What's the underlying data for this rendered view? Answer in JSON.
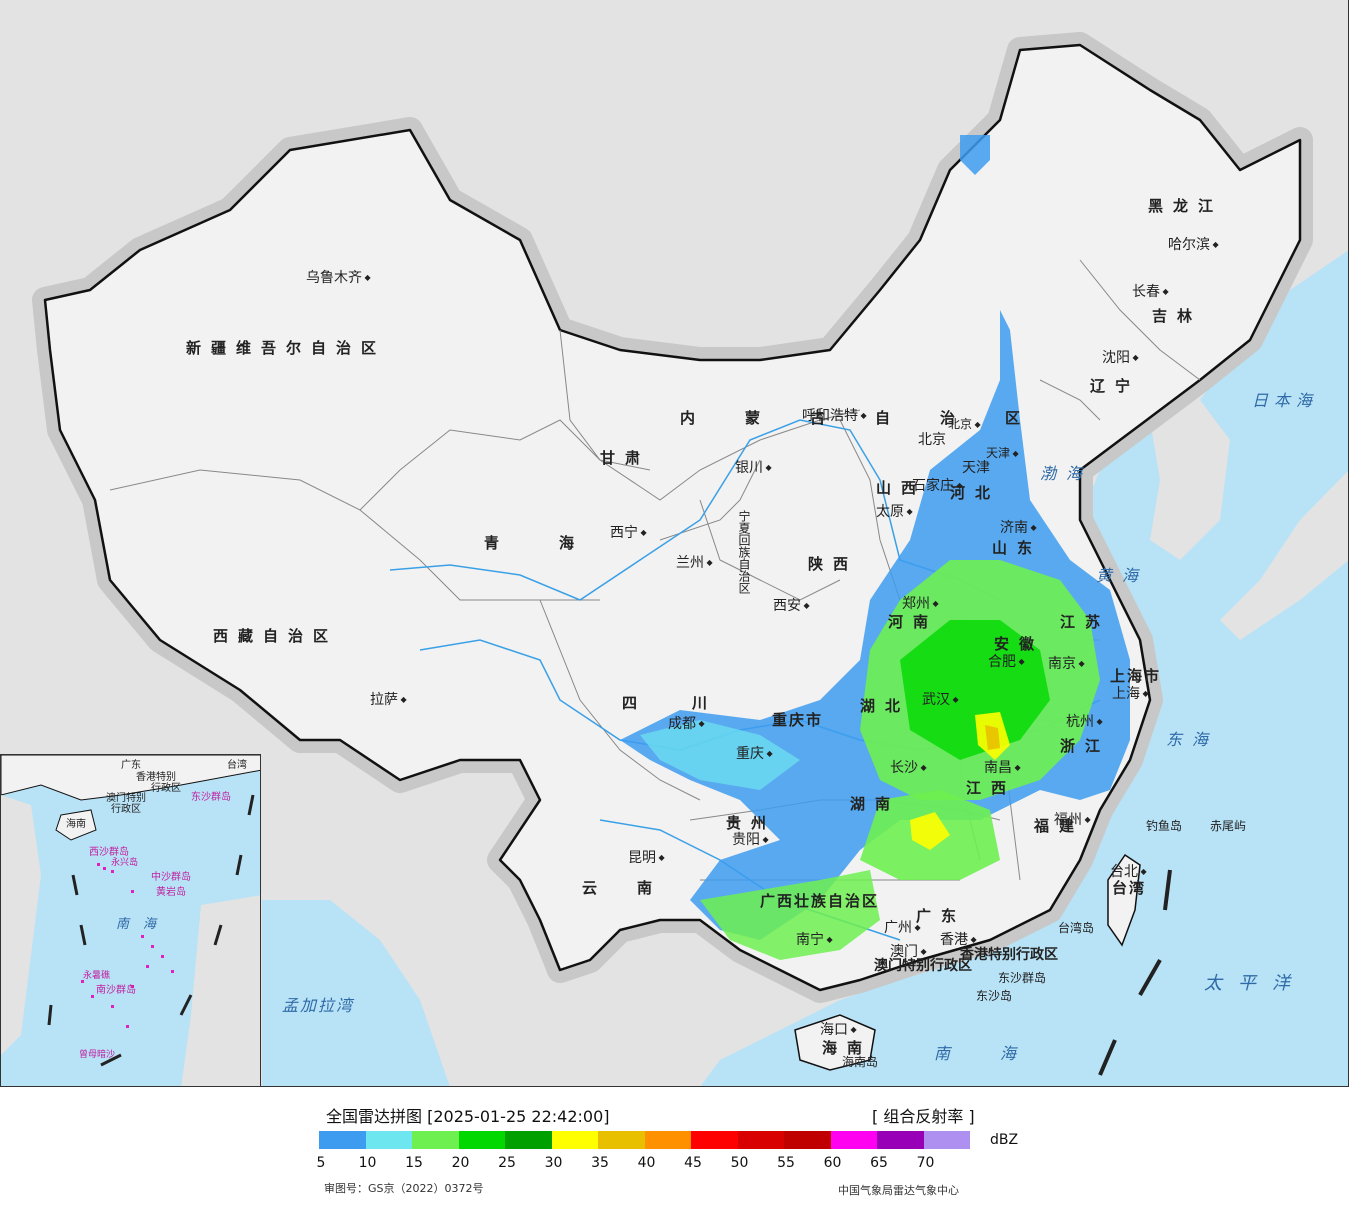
{
  "map": {
    "provinces": [
      "新疆维吾尔自治区",
      "西藏自治区",
      "青海",
      "甘肃",
      "四川",
      "云南",
      "内蒙古自治区",
      "黑龙江",
      "吉林",
      "辽宁",
      "河北",
      "山西",
      "陕西",
      "河南",
      "山东",
      "江苏",
      "安徽",
      "湖北",
      "湖南",
      "江西",
      "浙江",
      "福建",
      "贵州",
      "广西壮族自治区",
      "广东",
      "海南",
      "重庆市",
      "上海市",
      "天津",
      "北京",
      "台湾",
      "宁夏回族自治区",
      "香港特别行政区",
      "澳门特别行政区"
    ],
    "cities": [
      "乌鲁木齐",
      "拉萨",
      "西宁",
      "兰州",
      "银川",
      "呼和浩特",
      "西安",
      "成都",
      "重庆",
      "贵阳",
      "昆明",
      "南宁",
      "广州",
      "澳门",
      "香港",
      "长沙",
      "武汉",
      "南昌",
      "福州",
      "台北",
      "杭州",
      "上海",
      "南京",
      "合肥",
      "郑州",
      "济南",
      "石家庄",
      "太原",
      "北京",
      "天津",
      "沈阳",
      "长春",
      "哈尔滨",
      "海口"
    ],
    "seas": [
      "日本海",
      "渤海",
      "黄海",
      "东海",
      "太平洋",
      "南海",
      "孟加拉湾"
    ],
    "islands": [
      "钓鱼岛",
      "赤尾屿",
      "台湾岛",
      "东沙群岛",
      "东沙岛",
      "海南岛"
    ],
    "inset": {
      "labels": [
        "广东",
        "香港特别",
        "行政区",
        "澳门特别",
        "行政区",
        "东沙群岛",
        "海南",
        "西沙群岛",
        "永兴岛",
        "中沙群岛",
        "黄岩岛",
        "南海",
        "南沙群岛",
        "永暑礁",
        "曾母暗沙",
        "台湾"
      ]
    },
    "colors": {
      "ocean": "#b8e2f5",
      "land_cn": "#f2f2f2",
      "land_other": "#e3e3e3",
      "river": "#3aa0e6",
      "border": "#111111"
    }
  },
  "legend": {
    "title": "全国雷达拼图 [2025-01-25 22:42:00]",
    "type": "[ 组合反射率 ]",
    "unit": "dBZ",
    "ticks": [
      "5",
      "10",
      "15",
      "20",
      "25",
      "30",
      "35",
      "40",
      "45",
      "50",
      "55",
      "60",
      "65",
      "70"
    ],
    "colors": [
      "#3d9cf0",
      "#6ee6f0",
      "#6ef050",
      "#00d800",
      "#00a000",
      "#ffff00",
      "#e8c000",
      "#ff9000",
      "#ff0000",
      "#d80000",
      "#c00000",
      "#ff00f0",
      "#9800b8",
      "#ae90f0"
    ],
    "approval": "审图号：GS京（2022）0372号",
    "source": "中国气象局雷达气象中心"
  }
}
